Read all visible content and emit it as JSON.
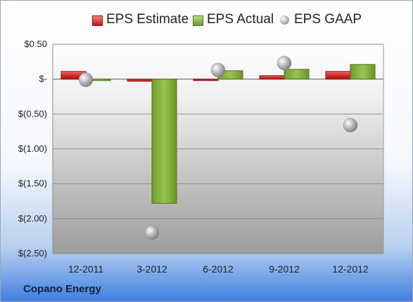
{
  "company": "Copano Energy",
  "colors": {
    "estimate": "#d42a2a",
    "actual": "#80b03a",
    "gaap": "#b0b0b0"
  },
  "chart_data": {
    "type": "bar",
    "categories": [
      "12-2011",
      "3-2012",
      "6-2012",
      "9-2012",
      "12-2012"
    ],
    "series": [
      {
        "name": "EPS Estimate",
        "values": [
          0.11,
          -0.03,
          -0.01,
          0.05,
          0.11
        ]
      },
      {
        "name": "EPS Actual",
        "values": [
          -0.01,
          -1.78,
          0.12,
          0.14,
          0.21
        ]
      },
      {
        "name": "EPS GAAP",
        "values": [
          -0.01,
          -2.2,
          0.13,
          0.23,
          -0.66
        ]
      }
    ],
    "ylim": [
      -2.5,
      0.5
    ],
    "yticks": [
      0.5,
      0,
      -0.5,
      -1.0,
      -1.5,
      -2.0,
      -2.5
    ],
    "ytick_labels": [
      "$0.50",
      "$-",
      "$(0.50)",
      "$(1.00)",
      "$(1.50)",
      "$(2.00)",
      "$(2.50)"
    ],
    "grid": true,
    "legend_position": "top"
  }
}
